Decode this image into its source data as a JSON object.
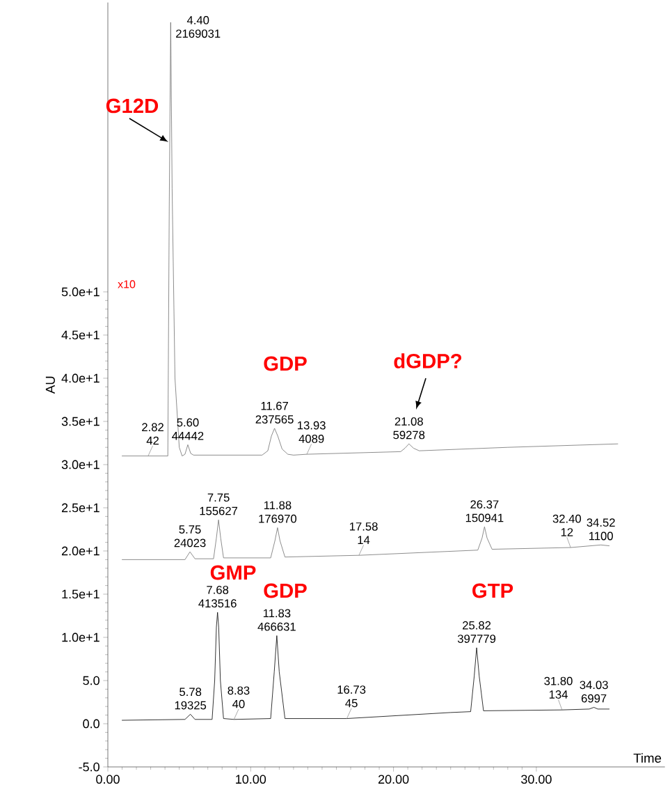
{
  "chart_data": {
    "type": "line",
    "xlabel": "Time",
    "ylabel": "AU",
    "xlim": [
      0,
      39
    ],
    "ylim": [
      -5,
      83.5
    ],
    "xticks": [
      {
        "value": 0,
        "label": "0.00"
      },
      {
        "value": 10,
        "label": "10.00"
      },
      {
        "value": 20,
        "label": "20.00"
      },
      {
        "value": 30,
        "label": "30.00"
      }
    ],
    "yticks": [
      {
        "value": -5,
        "label": "-5.0"
      },
      {
        "value": 0,
        "label": "0.0"
      },
      {
        "value": 5,
        "label": "5.0"
      },
      {
        "value": 10,
        "label": "1.0e+1"
      },
      {
        "value": 15,
        "label": "1.5e+1"
      },
      {
        "value": 20,
        "label": "2.0e+1"
      },
      {
        "value": 25,
        "label": "2.5e+1"
      },
      {
        "value": 30,
        "label": "3.0e+1"
      },
      {
        "value": 35,
        "label": "3.5e+1"
      },
      {
        "value": 40,
        "label": "4.0e+1"
      },
      {
        "value": 45,
        "label": "4.5e+1"
      },
      {
        "value": 50,
        "label": "5.0e+1"
      }
    ],
    "series": [
      {
        "color": "#707070",
        "x": [
          1.0,
          2.82,
          4.2,
          4.3,
          4.4,
          4.5,
          4.7,
          5.0,
          5.2,
          5.4,
          5.6,
          5.8,
          6.0,
          10.8,
          11.2,
          11.45,
          11.67,
          11.9,
          12.2,
          12.6,
          13.0,
          13.93,
          20.5,
          20.8,
          21.08,
          21.4,
          21.8,
          28.0,
          35.7
        ],
        "values": [
          31.0,
          31.0,
          31.0,
          60.0,
          81.2,
          62.0,
          40.0,
          32.0,
          31.0,
          31.2,
          32.3,
          31.3,
          31.1,
          31.1,
          31.6,
          33.3,
          34.2,
          33.3,
          31.8,
          31.2,
          31.1,
          31.2,
          31.5,
          31.9,
          32.4,
          31.9,
          31.6,
          32.0,
          32.4
        ]
      },
      {
        "color": "#707070",
        "x": [
          1.0,
          5.4,
          5.75,
          6.1,
          7.4,
          7.6,
          7.75,
          7.9,
          8.1,
          11.4,
          11.7,
          11.88,
          12.05,
          12.4,
          17.58,
          25.9,
          26.2,
          26.37,
          26.55,
          26.9,
          32.4,
          34.52,
          35.1
        ],
        "values": [
          19.0,
          19.0,
          19.9,
          19.1,
          19.1,
          21.5,
          23.6,
          21.5,
          19.2,
          19.2,
          21.2,
          22.7,
          21.2,
          19.3,
          19.5,
          20.1,
          21.5,
          22.8,
          21.5,
          20.2,
          20.4,
          20.7,
          20.6
        ]
      },
      {
        "color": "#000000",
        "x": [
          1.0,
          5.4,
          5.78,
          6.1,
          7.3,
          7.48,
          7.6,
          7.68,
          7.76,
          7.88,
          8.1,
          8.83,
          11.4,
          11.65,
          11.83,
          12.0,
          12.4,
          16.73,
          24.0,
          25.4,
          25.65,
          25.82,
          26.0,
          26.3,
          31.8,
          33.7,
          34.03,
          34.3,
          35.1
        ],
        "values": [
          0.4,
          0.5,
          1.1,
          0.5,
          0.5,
          5.0,
          11.2,
          12.9,
          11.2,
          5.0,
          0.6,
          0.5,
          0.6,
          6.0,
          10.2,
          6.0,
          0.6,
          0.6,
          1.3,
          1.4,
          5.5,
          8.8,
          5.5,
          1.5,
          1.6,
          1.7,
          1.9,
          1.7,
          1.7
        ]
      }
    ],
    "annotations": [
      "G12D",
      "GDP",
      "dGDP?",
      "GMP",
      "GDP",
      "GTP",
      "x10",
      {
        "text": "2.82",
        "x": 2.82,
        "y": 31.0
      },
      {
        "text": "42",
        "x": 2.82,
        "y": 31.0
      },
      {
        "text": "4.40",
        "x": 4.4,
        "y": 81.2
      },
      {
        "text": "2169031",
        "x": 4.4,
        "y": 81.2
      },
      {
        "text": "5.60",
        "x": 5.6,
        "y": 32.3
      },
      {
        "text": "44442",
        "x": 5.6,
        "y": 32.3
      },
      {
        "text": "11.67",
        "x": 11.67,
        "y": 34.2
      },
      {
        "text": "237565",
        "x": 11.67,
        "y": 34.2
      },
      {
        "text": "13.93",
        "x": 13.93,
        "y": 31.2
      },
      {
        "text": "4089",
        "x": 13.93,
        "y": 31.2
      },
      {
        "text": "21.08",
        "x": 21.08,
        "y": 32.4
      },
      {
        "text": "59278",
        "x": 21.08,
        "y": 32.4
      },
      {
        "text": "5.75",
        "x": 5.75,
        "y": 19.9
      },
      {
        "text": "24023",
        "x": 5.75,
        "y": 19.9
      },
      {
        "text": "7.75",
        "x": 7.75,
        "y": 23.6
      },
      {
        "text": "155627",
        "x": 7.75,
        "y": 23.6
      },
      {
        "text": "11.88",
        "x": 11.88,
        "y": 22.7
      },
      {
        "text": "176970",
        "x": 11.88,
        "y": 22.7
      },
      {
        "text": "17.58",
        "x": 17.58,
        "y": 19.5
      },
      {
        "text": "14",
        "x": 17.58,
        "y": 19.5
      },
      {
        "text": "26.37",
        "x": 26.37,
        "y": 22.8
      },
      {
        "text": "150941",
        "x": 26.37,
        "y": 22.8
      },
      {
        "text": "32.40",
        "x": 32.4,
        "y": 20.4
      },
      {
        "text": "12",
        "x": 32.4,
        "y": 20.4
      },
      {
        "text": "34.52",
        "x": 34.52,
        "y": 20.7
      },
      {
        "text": "1100",
        "x": 34.52,
        "y": 20.7
      },
      {
        "text": "5.78",
        "x": 5.78,
        "y": 1.1
      },
      {
        "text": "19325",
        "x": 5.78,
        "y": 1.1
      },
      {
        "text": "7.68",
        "x": 7.68,
        "y": 12.9
      },
      {
        "text": "413516",
        "x": 7.68,
        "y": 12.9
      },
      {
        "text": "8.83",
        "x": 8.83,
        "y": 0.5
      },
      {
        "text": "40",
        "x": 8.83,
        "y": 0.5
      },
      {
        "text": "11.83",
        "x": 11.83,
        "y": 10.2
      },
      {
        "text": "466631",
        "x": 11.83,
        "y": 10.2
      },
      {
        "text": "16.73",
        "x": 16.73,
        "y": 0.6
      },
      {
        "text": "45",
        "x": 16.73,
        "y": 0.6
      },
      {
        "text": "25.82",
        "x": 25.82,
        "y": 8.8
      },
      {
        "text": "397779",
        "x": 25.82,
        "y": 8.8
      },
      {
        "text": "31.80",
        "x": 31.8,
        "y": 1.6
      },
      {
        "text": "134",
        "x": 31.8,
        "y": 1.6
      },
      {
        "text": "34.03",
        "x": 34.03,
        "y": 1.9
      },
      {
        "text": "6997",
        "x": 34.03,
        "y": 1.9
      }
    ]
  }
}
